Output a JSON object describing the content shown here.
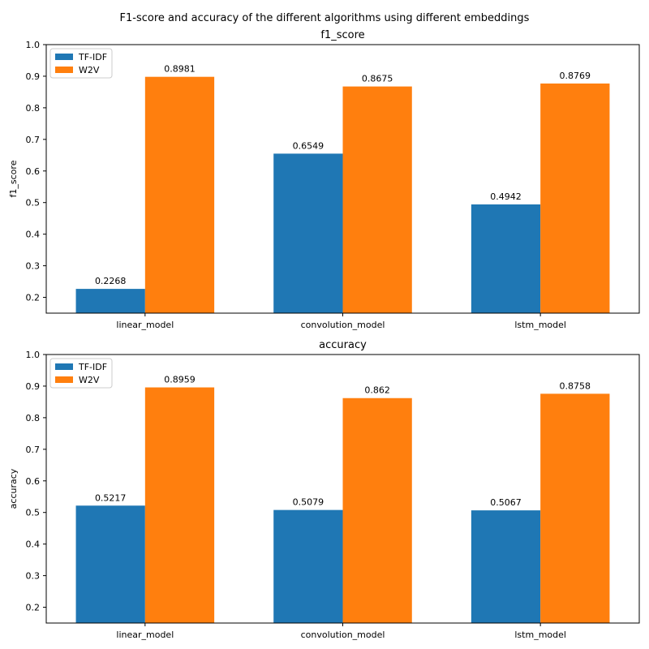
{
  "figure": {
    "title": "F1-score and accuracy of the different algorithms using different embeddings"
  },
  "colors": {
    "tfidf": "#1f77b4",
    "w2v": "#ff7f0e"
  },
  "chart_data": [
    {
      "type": "bar",
      "title": "f1_score",
      "ylabel": "f1_score",
      "xlabel": "",
      "ylim": [
        0.15,
        1.0
      ],
      "yticks": [
        "0.2",
        "0.3",
        "0.4",
        "0.5",
        "0.6",
        "0.7",
        "0.8",
        "0.9",
        "1.0"
      ],
      "legend": "top-left",
      "grid": false,
      "categories": [
        "linear_model",
        "convolution_model",
        "lstm_model"
      ],
      "series": [
        {
          "name": "TF-IDF",
          "values": [
            0.2268,
            0.6549,
            0.4942
          ],
          "labels": [
            "0.2268",
            "0.6549",
            "0.4942"
          ]
        },
        {
          "name": "W2V",
          "values": [
            0.8981,
            0.8675,
            0.8769
          ],
          "labels": [
            "0.8981",
            "0.8675",
            "0.8769"
          ]
        }
      ]
    },
    {
      "type": "bar",
      "title": "accuracy",
      "ylabel": "accuracy",
      "xlabel": "",
      "ylim": [
        0.15,
        1.0
      ],
      "yticks": [
        "0.2",
        "0.3",
        "0.4",
        "0.5",
        "0.6",
        "0.7",
        "0.8",
        "0.9",
        "1.0"
      ],
      "legend": "top-left",
      "grid": false,
      "categories": [
        "linear_model",
        "convolution_model",
        "lstm_model"
      ],
      "series": [
        {
          "name": "TF-IDF",
          "values": [
            0.5217,
            0.5079,
            0.5067
          ],
          "labels": [
            "0.5217",
            "0.5079",
            "0.5067"
          ]
        },
        {
          "name": "W2V",
          "values": [
            0.8959,
            0.862,
            0.8758
          ],
          "labels": [
            "0.8959",
            "0.862",
            "0.8758"
          ]
        }
      ]
    }
  ]
}
